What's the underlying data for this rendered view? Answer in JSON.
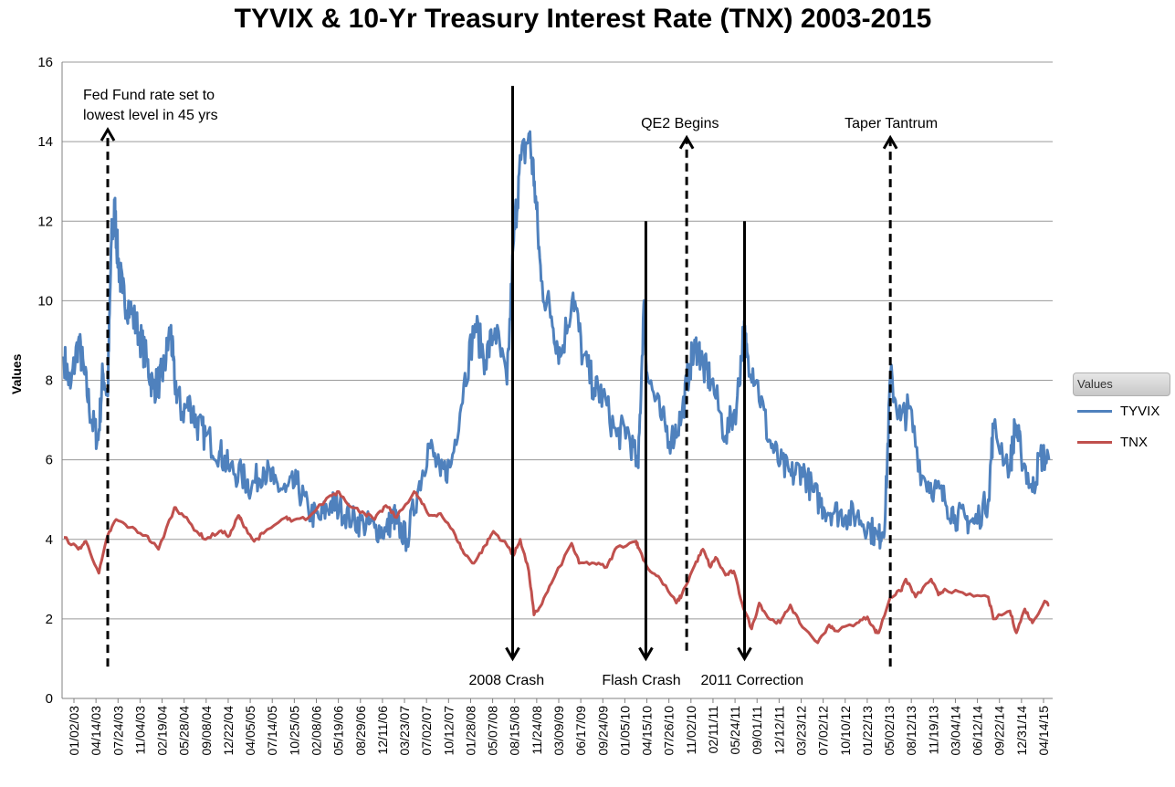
{
  "chart_data": {
    "type": "line",
    "title": "TYVIX & 10-Yr Treasury Interest Rate (TNX) 2003-2015",
    "ylabel": "Values",
    "xlabel": "",
    "ylim": [
      0,
      16
    ],
    "yticks": [
      0,
      2,
      4,
      6,
      8,
      10,
      12,
      14,
      16
    ],
    "xlim": [
      "2003-01-02",
      "2015-06-30"
    ],
    "x_tick_labels": [
      "01/02/03",
      "04/14/03",
      "07/24/03",
      "11/04/03",
      "02/19/04",
      "05/28/04",
      "09/08/04",
      "12/22/04",
      "04/05/05",
      "07/14/05",
      "10/25/05",
      "02/08/06",
      "05/19/06",
      "08/29/06",
      "12/11/06",
      "03/23/07",
      "07/02/07",
      "10/12/07",
      "01/28/08",
      "05/07/08",
      "08/15/08",
      "11/24/08",
      "03/09/09",
      "06/17/09",
      "09/24/09",
      "01/05/10",
      "04/15/10",
      "07/26/10",
      "11/02/10",
      "02/11/11",
      "05/24/11",
      "09/01/11",
      "12/12/11",
      "03/23/12",
      "07/02/12",
      "10/10/12",
      "01/22/13",
      "05/02/13",
      "08/12/13",
      "11/19/13",
      "03/04/14",
      "06/12/14",
      "09/22/14",
      "12/31/14",
      "04/14/15"
    ],
    "grid": true,
    "legend": {
      "title": "Values",
      "position": "right"
    },
    "series": [
      {
        "name": "TYVIX",
        "color": "#4f81bd",
        "points": [
          [
            "2003-01-02",
            8.6
          ],
          [
            "2003-02-01",
            7.8
          ],
          [
            "2003-03-10",
            9.0
          ],
          [
            "2003-04-05",
            8.2
          ],
          [
            "2003-05-10",
            7.0
          ],
          [
            "2003-06-10",
            6.5
          ],
          [
            "2003-07-01",
            8.2
          ],
          [
            "2003-07-24",
            7.6
          ],
          [
            "2003-08-10",
            11.5
          ],
          [
            "2003-08-25",
            12.3
          ],
          [
            "2003-09-10",
            11.0
          ],
          [
            "2003-10-01",
            10.2
          ],
          [
            "2003-11-04",
            9.8
          ],
          [
            "2003-12-15",
            9.2
          ],
          [
            "2004-01-20",
            8.5
          ],
          [
            "2004-02-19",
            7.8
          ],
          [
            "2004-03-20",
            8.0
          ],
          [
            "2004-04-10",
            8.3
          ],
          [
            "2004-05-10",
            9.3
          ],
          [
            "2004-05-28",
            8.0
          ],
          [
            "2004-07-01",
            7.2
          ],
          [
            "2004-08-10",
            7.4
          ],
          [
            "2004-09-08",
            6.9
          ],
          [
            "2004-10-20",
            6.6
          ],
          [
            "2004-12-22",
            6.2
          ],
          [
            "2005-02-01",
            5.8
          ],
          [
            "2005-04-05",
            5.6
          ],
          [
            "2005-05-20",
            5.3
          ],
          [
            "2005-07-14",
            5.8
          ],
          [
            "2005-09-01",
            5.4
          ],
          [
            "2005-10-25",
            5.2
          ],
          [
            "2005-12-15",
            5.4
          ],
          [
            "2006-02-08",
            4.7
          ],
          [
            "2006-04-01",
            4.5
          ],
          [
            "2006-05-19",
            4.9
          ],
          [
            "2006-07-01",
            4.8
          ],
          [
            "2006-08-29",
            4.5
          ],
          [
            "2006-10-20",
            4.4
          ],
          [
            "2006-12-11",
            4.3
          ],
          [
            "2007-02-01",
            4.2
          ],
          [
            "2007-03-10",
            4.6
          ],
          [
            "2007-03-23",
            4.4
          ],
          [
            "2007-05-10",
            4.0
          ],
          [
            "2007-07-02",
            5.3
          ],
          [
            "2007-08-20",
            6.4
          ],
          [
            "2007-10-12",
            5.6
          ],
          [
            "2007-12-01",
            5.9
          ],
          [
            "2008-01-28",
            7.9
          ],
          [
            "2008-03-20",
            9.4
          ],
          [
            "2008-05-07",
            8.5
          ],
          [
            "2008-06-20",
            9.3
          ],
          [
            "2008-08-15",
            7.9
          ],
          [
            "2008-09-15",
            11.5
          ],
          [
            "2008-10-10",
            13.2
          ],
          [
            "2008-11-24",
            14.2
          ],
          [
            "2008-12-20",
            13.0
          ],
          [
            "2009-01-20",
            10.5
          ],
          [
            "2009-03-09",
            9.6
          ],
          [
            "2009-04-20",
            8.6
          ],
          [
            "2009-06-17",
            10.2
          ],
          [
            "2009-08-01",
            8.6
          ],
          [
            "2009-09-24",
            7.8
          ],
          [
            "2009-11-01",
            7.6
          ],
          [
            "2010-01-05",
            6.6
          ],
          [
            "2010-02-20",
            6.8
          ],
          [
            "2010-04-15",
            5.8
          ],
          [
            "2010-05-10",
            9.9
          ],
          [
            "2010-05-25",
            8.2
          ],
          [
            "2010-07-26",
            7.1
          ],
          [
            "2010-09-15",
            6.5
          ],
          [
            "2010-11-02",
            7.1
          ],
          [
            "2010-12-10",
            8.4
          ],
          [
            "2011-01-15",
            8.9
          ],
          [
            "2011-02-11",
            8.3
          ],
          [
            "2011-03-20",
            8.0
          ],
          [
            "2011-05-24",
            6.6
          ],
          [
            "2011-07-15",
            7.4
          ],
          [
            "2011-08-15",
            9.2
          ],
          [
            "2011-09-01",
            8.7
          ],
          [
            "2011-10-15",
            8.0
          ],
          [
            "2011-12-12",
            6.5
          ],
          [
            "2012-02-01",
            5.9
          ],
          [
            "2012-03-23",
            5.6
          ],
          [
            "2012-05-10",
            5.8
          ],
          [
            "2012-07-02",
            5.2
          ],
          [
            "2012-08-20",
            4.8
          ],
          [
            "2012-10-10",
            4.7
          ],
          [
            "2012-12-01",
            4.6
          ],
          [
            "2013-01-22",
            4.6
          ],
          [
            "2013-03-20",
            4.3
          ],
          [
            "2013-05-02",
            4.0
          ],
          [
            "2013-06-01",
            4.5
          ],
          [
            "2013-06-25",
            8.1
          ],
          [
            "2013-08-12",
            7.0
          ],
          [
            "2013-09-20",
            7.3
          ],
          [
            "2013-11-19",
            5.6
          ],
          [
            "2014-01-15",
            5.3
          ],
          [
            "2014-03-04",
            5.0
          ],
          [
            "2014-04-20",
            4.6
          ],
          [
            "2014-06-12",
            4.5
          ],
          [
            "2014-07-20",
            4.4
          ],
          [
            "2014-09-22",
            5.0
          ],
          [
            "2014-10-15",
            6.8
          ],
          [
            "2014-12-31",
            5.8
          ],
          [
            "2015-01-25",
            6.9
          ],
          [
            "2015-02-20",
            6.2
          ],
          [
            "2015-04-14",
            5.2
          ],
          [
            "2015-05-20",
            6.1
          ],
          [
            "2015-06-30",
            6.0
          ]
        ]
      },
      {
        "name": "TNX",
        "color": "#c0504d",
        "points": [
          [
            "2003-01-02",
            4.05
          ],
          [
            "2003-03-10",
            3.75
          ],
          [
            "2003-04-14",
            3.95
          ],
          [
            "2003-06-13",
            3.15
          ],
          [
            "2003-07-24",
            4.1
          ],
          [
            "2003-09-01",
            4.5
          ],
          [
            "2003-11-04",
            4.3
          ],
          [
            "2004-01-15",
            4.1
          ],
          [
            "2004-03-15",
            3.75
          ],
          [
            "2004-05-28",
            4.8
          ],
          [
            "2004-06-30",
            4.65
          ],
          [
            "2004-09-08",
            4.2
          ],
          [
            "2004-10-20",
            4.0
          ],
          [
            "2004-12-22",
            4.2
          ],
          [
            "2005-02-08",
            4.1
          ],
          [
            "2005-03-20",
            4.6
          ],
          [
            "2005-04-05",
            4.45
          ],
          [
            "2005-06-01",
            3.95
          ],
          [
            "2005-07-14",
            4.15
          ],
          [
            "2005-10-25",
            4.55
          ],
          [
            "2005-11-20",
            4.45
          ],
          [
            "2006-02-08",
            4.55
          ],
          [
            "2006-05-19",
            5.1
          ],
          [
            "2006-06-28",
            5.2
          ],
          [
            "2006-08-29",
            4.8
          ],
          [
            "2006-10-15",
            4.7
          ],
          [
            "2006-12-11",
            4.5
          ],
          [
            "2007-02-01",
            4.85
          ],
          [
            "2007-03-23",
            4.55
          ],
          [
            "2007-06-12",
            5.2
          ],
          [
            "2007-07-02",
            5.05
          ],
          [
            "2007-08-20",
            4.6
          ],
          [
            "2007-10-12",
            4.65
          ],
          [
            "2007-12-20",
            4.1
          ],
          [
            "2008-01-28",
            3.65
          ],
          [
            "2008-03-15",
            3.4
          ],
          [
            "2008-05-07",
            3.85
          ],
          [
            "2008-06-13",
            4.2
          ],
          [
            "2008-08-15",
            3.85
          ],
          [
            "2008-09-15",
            3.6
          ],
          [
            "2008-10-15",
            4.0
          ],
          [
            "2008-11-24",
            3.2
          ],
          [
            "2008-12-18",
            2.1
          ],
          [
            "2009-01-15",
            2.3
          ],
          [
            "2009-03-09",
            2.9
          ],
          [
            "2009-06-10",
            3.9
          ],
          [
            "2009-07-15",
            3.4
          ],
          [
            "2009-09-24",
            3.4
          ],
          [
            "2009-11-20",
            3.3
          ],
          [
            "2010-01-05",
            3.8
          ],
          [
            "2010-04-05",
            3.95
          ],
          [
            "2010-04-15",
            3.8
          ],
          [
            "2010-06-01",
            3.25
          ],
          [
            "2010-07-26",
            3.0
          ],
          [
            "2010-10-08",
            2.4
          ],
          [
            "2010-11-02",
            2.6
          ],
          [
            "2011-01-01",
            3.35
          ],
          [
            "2011-02-08",
            3.75
          ],
          [
            "2011-03-15",
            3.3
          ],
          [
            "2011-04-08",
            3.55
          ],
          [
            "2011-05-24",
            3.1
          ],
          [
            "2011-07-01",
            3.2
          ],
          [
            "2011-08-08",
            2.4
          ],
          [
            "2011-09-22",
            1.75
          ],
          [
            "2011-10-27",
            2.4
          ],
          [
            "2011-12-12",
            2.0
          ],
          [
            "2012-02-01",
            1.9
          ],
          [
            "2012-03-19",
            2.35
          ],
          [
            "2012-05-01",
            1.9
          ],
          [
            "2012-07-24",
            1.4
          ],
          [
            "2012-09-15",
            1.85
          ],
          [
            "2012-10-10",
            1.7
          ],
          [
            "2013-01-22",
            1.9
          ],
          [
            "2013-03-11",
            2.05
          ],
          [
            "2013-04-15",
            1.7
          ],
          [
            "2013-05-02",
            1.65
          ],
          [
            "2013-06-25",
            2.55
          ],
          [
            "2013-08-12",
            2.7
          ],
          [
            "2013-09-05",
            3.0
          ],
          [
            "2013-10-20",
            2.55
          ],
          [
            "2013-12-31",
            3.0
          ],
          [
            "2014-02-03",
            2.6
          ],
          [
            "2014-03-04",
            2.75
          ],
          [
            "2014-06-12",
            2.6
          ],
          [
            "2014-09-22",
            2.55
          ],
          [
            "2014-10-15",
            2.0
          ],
          [
            "2014-12-31",
            2.2
          ],
          [
            "2015-01-30",
            1.65
          ],
          [
            "2015-03-10",
            2.25
          ],
          [
            "2015-04-14",
            1.9
          ],
          [
            "2015-06-10",
            2.45
          ],
          [
            "2015-06-30",
            2.35
          ]
        ]
      }
    ],
    "annotations": [
      {
        "text": "Fed Fund rate set to\nlowest level in 45 yrs",
        "date": "2003-07-24",
        "style": "dashed",
        "direction": "up",
        "from": 0.8,
        "to": 14.3
      },
      {
        "text": "2008 Crash",
        "date": "2008-09-10",
        "style": "solid",
        "direction": "down",
        "from": 15.4,
        "to": 1.0
      },
      {
        "text": "Flash Crash",
        "date": "2010-05-20",
        "style": "solid",
        "direction": "down",
        "from": 12.0,
        "to": 1.0
      },
      {
        "text": "QE2 Begins",
        "date": "2010-11-25",
        "style": "dashed",
        "direction": "up",
        "from": 1.2,
        "to": 14.1
      },
      {
        "text": "2011 Correction",
        "date": "2011-08-20",
        "style": "solid",
        "direction": "down",
        "from": 12.0,
        "to": 1.0
      },
      {
        "text": "Taper Tantrum",
        "date": "2013-06-25",
        "style": "dashed",
        "direction": "up",
        "from": 0.8,
        "to": 14.1
      }
    ]
  }
}
